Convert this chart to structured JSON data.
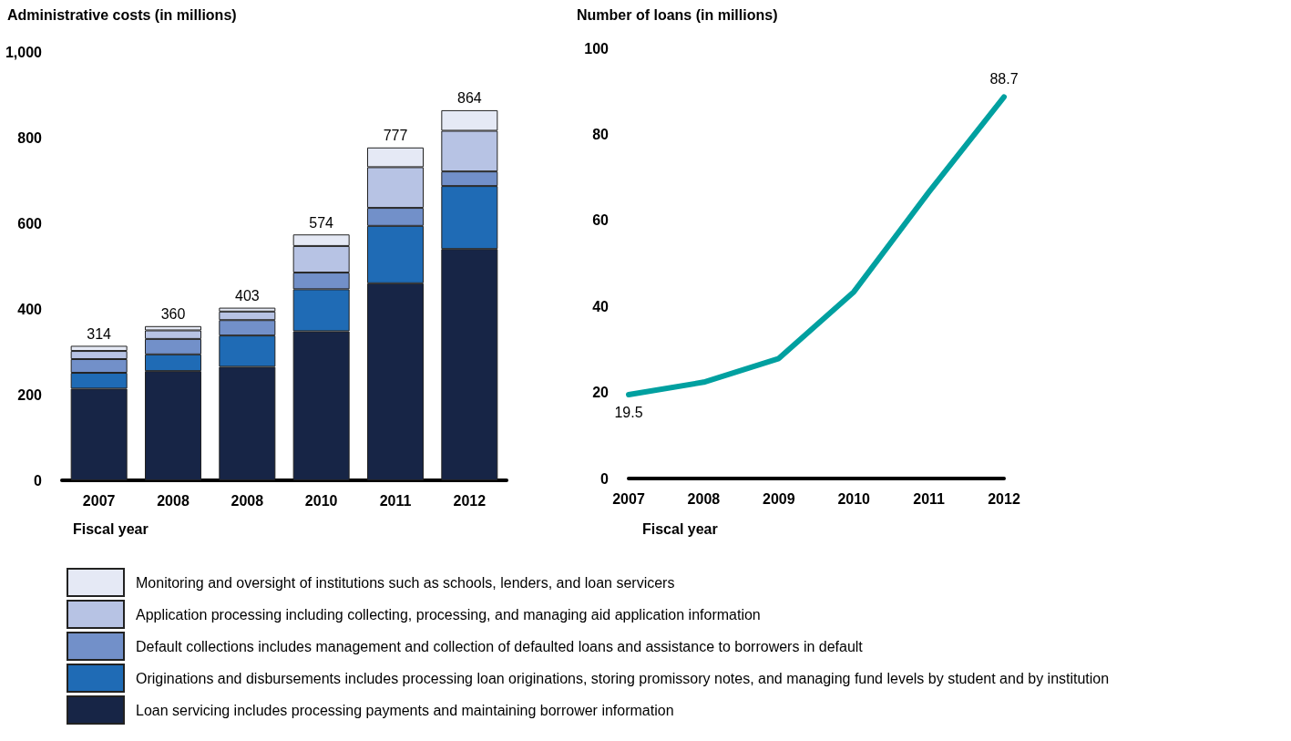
{
  "chart_data": [
    {
      "type": "bar",
      "title": "Administrative costs (in millions)",
      "xlabel": "Fiscal year",
      "categories": [
        "2007",
        "2008",
        "2008",
        "2010",
        "2011",
        "2012"
      ],
      "stacked": true,
      "legend": "bottom",
      "grid": false,
      "series": [
        {
          "name": "Loan servicing includes processing payments and maintaining borrower information",
          "color": "#172546",
          "values": [
            214,
            255,
            265,
            348,
            460,
            540
          ]
        },
        {
          "name": "Originations and disbursements includes processing loan originations, storing promissory notes, and managing fund levels by student and by institution",
          "color": "#1f6bb5",
          "values": [
            37,
            39,
            73,
            98,
            134,
            147
          ]
        },
        {
          "name": "Default collections includes management and collection of defaulted loans and assistance to borrowers in default",
          "color": "#7290c9",
          "values": [
            32,
            36,
            36,
            39,
            42,
            34
          ]
        },
        {
          "name": "Application processing including collecting, processing, and managing aid application information",
          "color": "#b7c3e4",
          "values": [
            19,
            20,
            20,
            62,
            95,
            95
          ]
        },
        {
          "name": "Monitoring and oversight of institutions such as schools, lenders, and loan servicers",
          "color": "#e5e9f5",
          "values": [
            12,
            10,
            9,
            27,
            46,
            48
          ]
        }
      ],
      "totals": [
        "314",
        "360",
        "403",
        "574",
        "777",
        "864"
      ],
      "ylim": [
        0,
        1000
      ],
      "yticks": [
        0,
        200,
        400,
        600,
        800,
        {
          "value": 1000,
          "label": "1,000"
        }
      ]
    },
    {
      "type": "line",
      "title": "Number of loans (in millions)",
      "xlabel": "Fiscal year",
      "categories": [
        "2007",
        "2008",
        "2009",
        "2010",
        "2011",
        "2012"
      ],
      "grid": false,
      "marker": "none",
      "legend": false,
      "series": [
        {
          "color": "#00a0a0",
          "values": [
            19.5,
            22.4,
            27.9,
            43.4,
            66.6,
            88.7
          ],
          "value_labels": [
            "19.5",
            null,
            null,
            null,
            null,
            "88.7"
          ]
        }
      ],
      "ylim": [
        0,
        100
      ],
      "yticks": [
        0,
        20,
        40,
        60,
        80,
        100
      ]
    }
  ]
}
